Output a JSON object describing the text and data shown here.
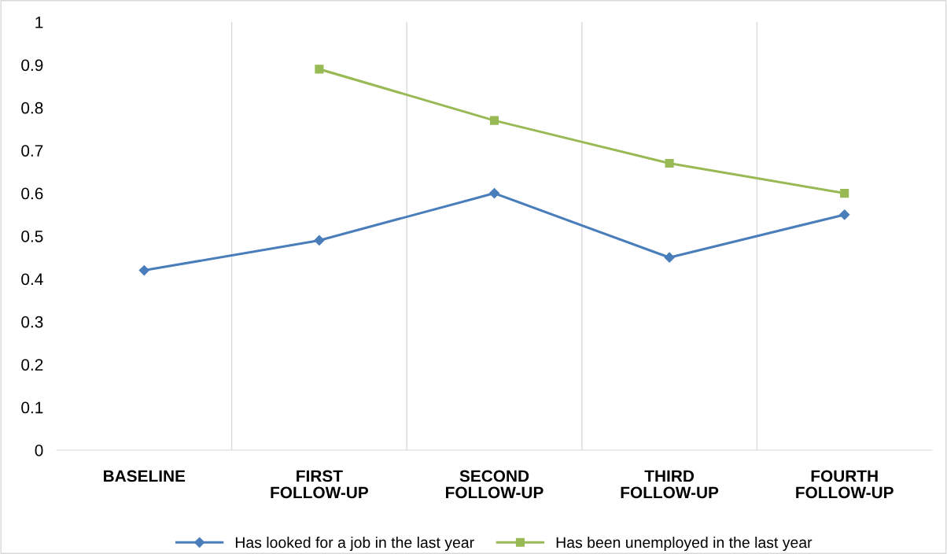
{
  "chart_data": {
    "type": "line",
    "categories": [
      "BASELINE",
      "FIRST\nFOLLOW-UP",
      "SECOND\nFOLLOW-UP",
      "THIRD\nFOLLOW-UP",
      "FOURTH\nFOLLOW-UP"
    ],
    "series": [
      {
        "name": "Has looked for a job in the last year",
        "color": "#4a7ebb",
        "marker": "diamond",
        "values": [
          0.42,
          0.49,
          0.6,
          0.45,
          0.55
        ]
      },
      {
        "name": "Has been unemployed in the last year",
        "color": "#98b954",
        "marker": "square",
        "values": [
          null,
          0.89,
          0.77,
          0.67,
          0.6
        ]
      }
    ],
    "ylim": [
      0,
      1
    ],
    "yticks": [
      0,
      0.1,
      0.2,
      0.3,
      0.4,
      0.5,
      0.6,
      0.7,
      0.8,
      0.9,
      1
    ],
    "grid": "x",
    "legend": "bottom",
    "line_style": "solid"
  }
}
